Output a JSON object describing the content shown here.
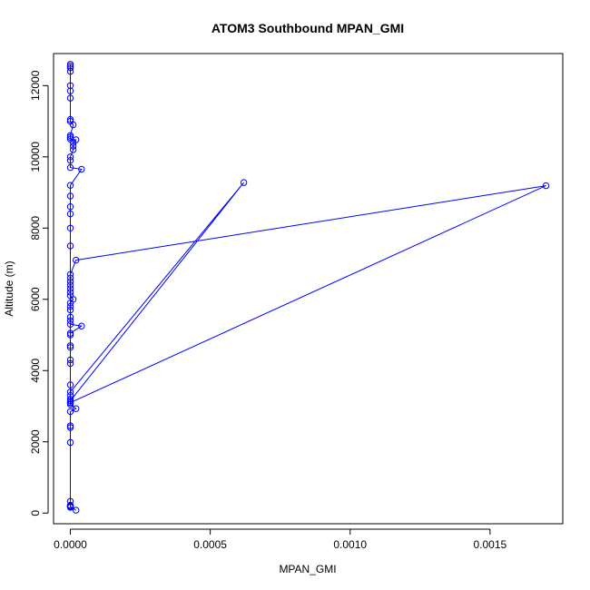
{
  "chart_data": {
    "type": "scatter",
    "title": "ATOM3 Southbound MPAN_GMI",
    "xlabel": "MPAN_GMI",
    "ylabel": "Altitude (m)",
    "xlim": [
      -6e-05,
      0.00176
    ],
    "ylim": [
      -300,
      12900
    ],
    "xticks": [
      0,
      0.0005,
      0.001,
      0.0015
    ],
    "xtick_labels": [
      "0.0000",
      "0.0005",
      "0.0010",
      "0.0015"
    ],
    "yticks": [
      0,
      2000,
      4000,
      6000,
      8000,
      10000,
      12000
    ],
    "ytick_labels": [
      "0",
      "2000",
      "4000",
      "6000",
      "8000",
      "10000",
      "12000"
    ],
    "grid": false,
    "legend": "none",
    "color": "#0000ff",
    "series": [
      {
        "points": [
          [
            2e-05,
            80
          ],
          [
            0.0,
            180
          ],
          [
            0.0,
            200
          ],
          [
            0.0,
            160
          ],
          [
            0.0,
            220
          ],
          [
            0.0,
            190
          ],
          [
            0.0,
            330
          ],
          [
            0.0,
            200
          ],
          [
            0.0,
            1980
          ],
          [
            0.0,
            2400
          ],
          [
            0.0,
            2450
          ],
          [
            0.0,
            2850
          ],
          [
            2e-05,
            2930
          ],
          [
            0.0,
            3050
          ],
          [
            0.0,
            3100
          ],
          [
            0.0,
            3200
          ],
          [
            0.0,
            3300
          ],
          [
            0.0,
            3400
          ],
          [
            0.00062,
            9280
          ],
          [
            0.0,
            3150
          ],
          [
            0.0,
            3100
          ],
          [
            0.0,
            3600
          ],
          [
            0.0,
            4200
          ],
          [
            0.0,
            4300
          ],
          [
            0.0,
            4650
          ],
          [
            0.0,
            4700
          ],
          [
            0.0,
            5000
          ],
          [
            0.0,
            5050
          ],
          [
            4e-05,
            5250
          ],
          [
            0.0,
            5300
          ],
          [
            0.0,
            5400
          ],
          [
            0.0,
            5500
          ],
          [
            0.0,
            5700
          ],
          [
            0.0,
            5800
          ],
          [
            0.0,
            5900
          ],
          [
            1e-05,
            6000
          ],
          [
            0.0,
            6100
          ],
          [
            0.0,
            6200
          ],
          [
            0.0,
            6300
          ],
          [
            0.0,
            6400
          ],
          [
            0.0,
            6500
          ],
          [
            0.0,
            6600
          ],
          [
            0.0,
            6700
          ],
          [
            2e-05,
            7100
          ],
          [
            0.0017,
            9190
          ],
          [
            0.0,
            3100
          ],
          [
            0.0,
            7500
          ],
          [
            0.0,
            8000
          ],
          [
            0.0,
            8400
          ],
          [
            0.0,
            8600
          ],
          [
            0.0,
            8900
          ],
          [
            0.0,
            9200
          ],
          [
            4e-05,
            9650
          ],
          [
            0.0,
            9700
          ],
          [
            0.0,
            9900
          ],
          [
            0.0,
            10000
          ],
          [
            1e-05,
            10200
          ],
          [
            1e-05,
            10300
          ],
          [
            1e-05,
            10400
          ],
          [
            2e-05,
            10480
          ],
          [
            0.0,
            10500
          ],
          [
            0.0,
            10550
          ],
          [
            0.0,
            10600
          ],
          [
            1e-05,
            10900
          ],
          [
            0.0,
            11000
          ],
          [
            0.0,
            11050
          ],
          [
            0.0,
            11650
          ],
          [
            0.0,
            11850
          ],
          [
            0.0,
            12000
          ],
          [
            0.0,
            12400
          ],
          [
            0.0,
            12500
          ],
          [
            0.0,
            12550
          ],
          [
            0.0,
            12600
          ]
        ]
      }
    ]
  }
}
